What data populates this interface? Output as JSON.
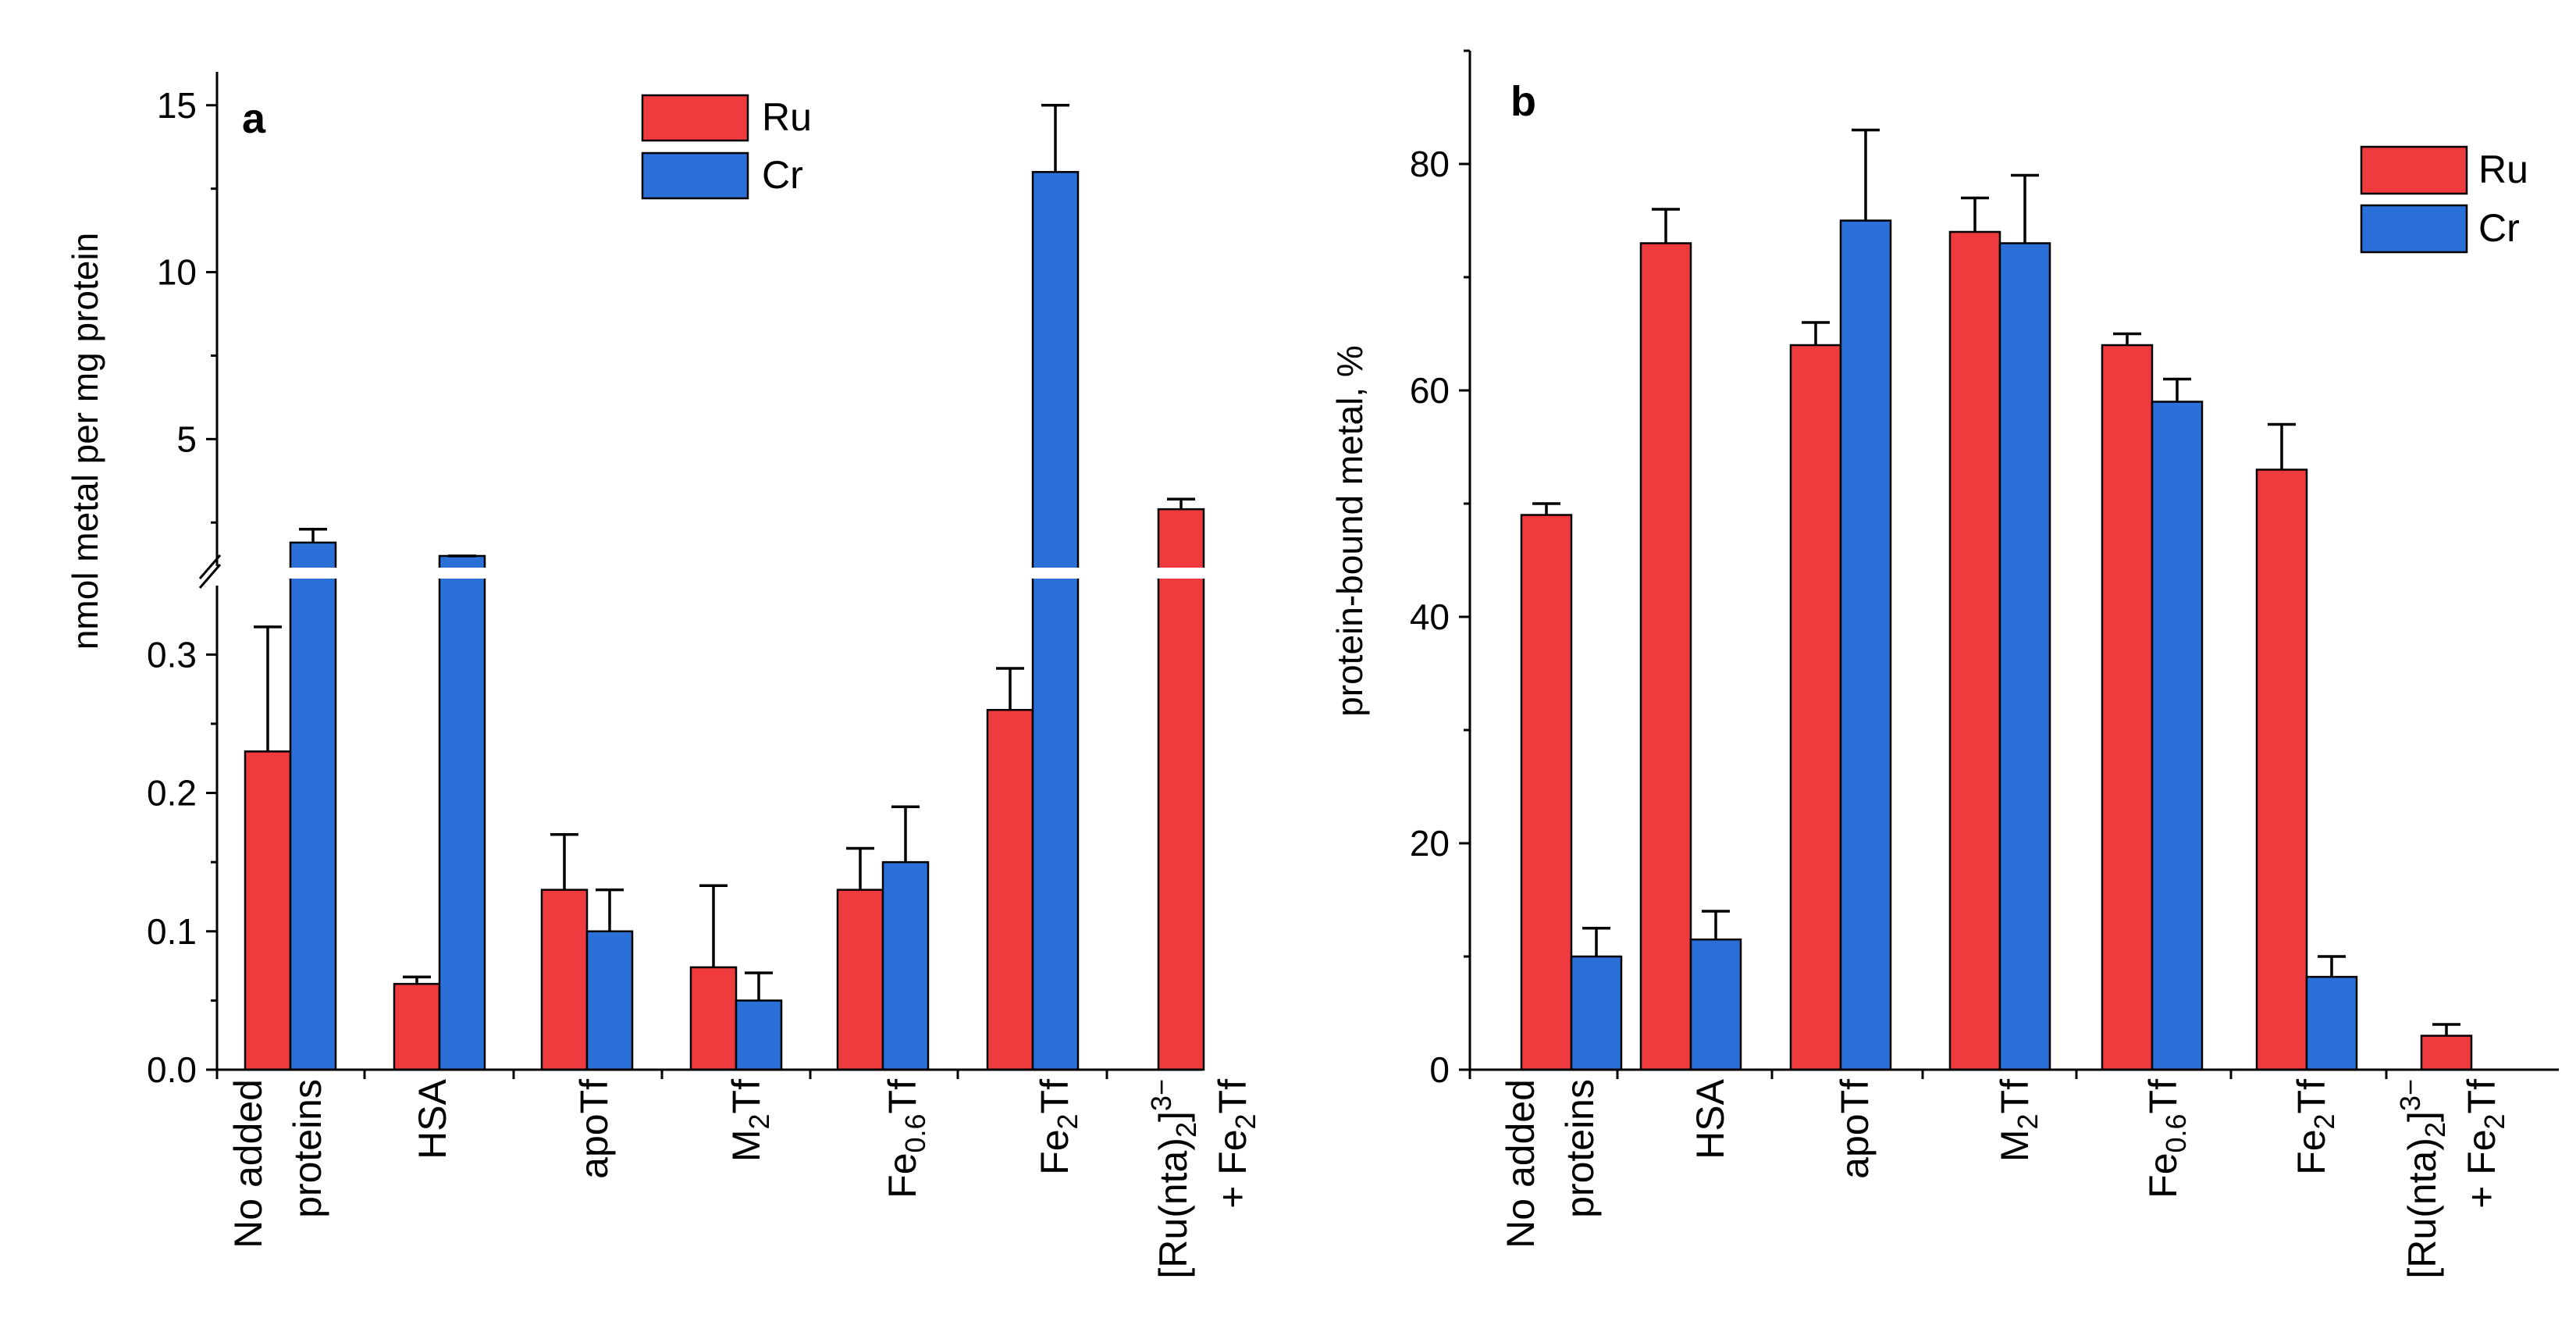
{
  "colors": {
    "Ru": "#ef3b3e",
    "Cr": "#2b6fd9"
  },
  "chart_data": [
    {
      "panel": "a",
      "type": "bar",
      "ylabel": "nmol metal per mg protein",
      "lower_axis": {
        "ylim": [
          0,
          0.36
        ],
        "ticks": [
          "0.0",
          "0.1",
          "0.2",
          "0.3"
        ]
      },
      "upper_axis": {
        "ylim": [
          1.5,
          16
        ],
        "ticks": [
          "5",
          "10",
          "15"
        ]
      },
      "axis_break": true,
      "legend": [
        "Ru",
        "Cr"
      ],
      "categories": [
        {
          "lines": [
            [
              "No added"
            ],
            [
              "proteins"
            ]
          ]
        },
        {
          "lines": [
            [
              "HSA"
            ]
          ]
        },
        {
          "lines": [
            [
              "apoTf"
            ]
          ]
        },
        {
          "lines": [
            [
              "M",
              {
                "sub": "2"
              },
              "Tf"
            ]
          ]
        },
        {
          "lines": [
            [
              "Fe",
              {
                "sub": "0.6"
              },
              "Tf"
            ]
          ]
        },
        {
          "lines": [
            [
              "Fe",
              {
                "sub": "2"
              },
              "Tf"
            ]
          ]
        },
        {
          "lines": [
            [
              "[Ru(nta)",
              {
                "sub": "2"
              },
              "]",
              {
                "sup": "3−"
              }
            ],
            [
              "+ Fe",
              {
                "sub": "2"
              },
              "Tf"
            ]
          ]
        }
      ],
      "series": [
        {
          "name": "Ru",
          "values": [
            0.23,
            0.062,
            0.13,
            0.074,
            0.13,
            0.26,
            2.9
          ],
          "errors": [
            0.09,
            0.005,
            0.04,
            0.059,
            0.03,
            0.03,
            0.3
          ]
        },
        {
          "name": "Cr",
          "values": [
            1.9,
            1.2,
            0.1,
            0.05,
            0.15,
            13.0,
            null
          ],
          "errors": [
            0.4,
            0.2,
            0.03,
            0.02,
            0.04,
            2.0,
            null
          ]
        }
      ]
    },
    {
      "panel": "b",
      "type": "bar",
      "ylabel": "protein-bound metal, %",
      "ylim": [
        0,
        90
      ],
      "ticks": [
        "0",
        "20",
        "40",
        "60",
        "80"
      ],
      "legend": [
        "Ru",
        "Cr"
      ],
      "categories": [
        {
          "lines": [
            [
              "No added"
            ],
            [
              "proteins"
            ]
          ]
        },
        {
          "lines": [
            [
              "HSA"
            ]
          ]
        },
        {
          "lines": [
            [
              "apoTf"
            ]
          ]
        },
        {
          "lines": [
            [
              "M",
              {
                "sub": "2"
              },
              "Tf"
            ]
          ]
        },
        {
          "lines": [
            [
              "Fe",
              {
                "sub": "0.6"
              },
              "Tf"
            ]
          ]
        },
        {
          "lines": [
            [
              "Fe",
              {
                "sub": "2"
              },
              "Tf"
            ]
          ]
        },
        {
          "lines": [
            [
              "[Ru(nta)",
              {
                "sub": "2"
              },
              "]",
              {
                "sup": "3−"
              }
            ],
            [
              "+ Fe",
              {
                "sub": "2"
              },
              "Tf"
            ]
          ]
        }
      ],
      "series": [
        {
          "name": "Ru",
          "values": [
            49,
            73,
            64,
            74,
            64,
            53,
            3
          ],
          "errors": [
            1,
            3,
            2,
            3,
            1,
            4,
            1
          ]
        },
        {
          "name": "Cr",
          "values": [
            10,
            11.5,
            75,
            73,
            59,
            8.2,
            null
          ],
          "errors": [
            2.5,
            2.5,
            8,
            6,
            2,
            1.8,
            null
          ]
        }
      ]
    }
  ]
}
